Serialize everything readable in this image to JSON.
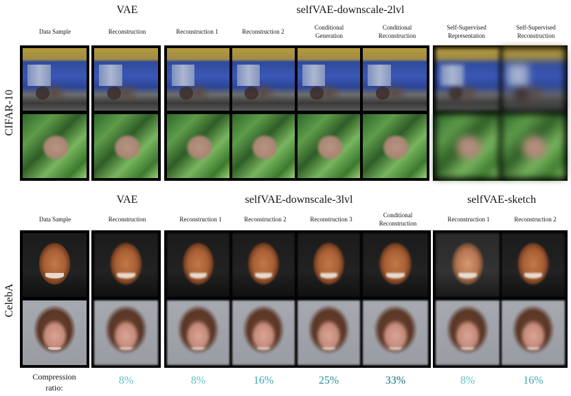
{
  "cifar": {
    "side_label": "CIFAR-10",
    "group_vae": "VAE",
    "group_self": "selfVAE-downscale-2lvl",
    "columns": [
      "Data Sample",
      "Reconstruction",
      "Reconstruction 1",
      "Reconstruction 2",
      "Conditional Generation",
      "Conditional Reconstruction",
      "Self-Supervised Representation",
      "Self-Supervised Reconstruction"
    ]
  },
  "celeba": {
    "side_label": "CelebA",
    "group_vae": "VAE",
    "group_self": "selfVAE-downscale-3lvl",
    "group_sketch": "selfVAE-sketch",
    "columns": [
      "Data Sample",
      "Reconstruction",
      "Reconstruction 1",
      "Reconstruction 2",
      "Reconstruction 3",
      "Conditional Reconstruction",
      "Reconstruction 1",
      "Reconstruction 2"
    ]
  },
  "compression": {
    "label": "Compression ratio:",
    "values": [
      "8%",
      "8%",
      "16%",
      "25%",
      "33%",
      "8%",
      "16%"
    ],
    "colors": [
      "#5fc0c8",
      "#5fc0c8",
      "#3aa7b4",
      "#1f8f9c",
      "#0f6f7a",
      "#5fc0c8",
      "#3aa7b4"
    ]
  }
}
